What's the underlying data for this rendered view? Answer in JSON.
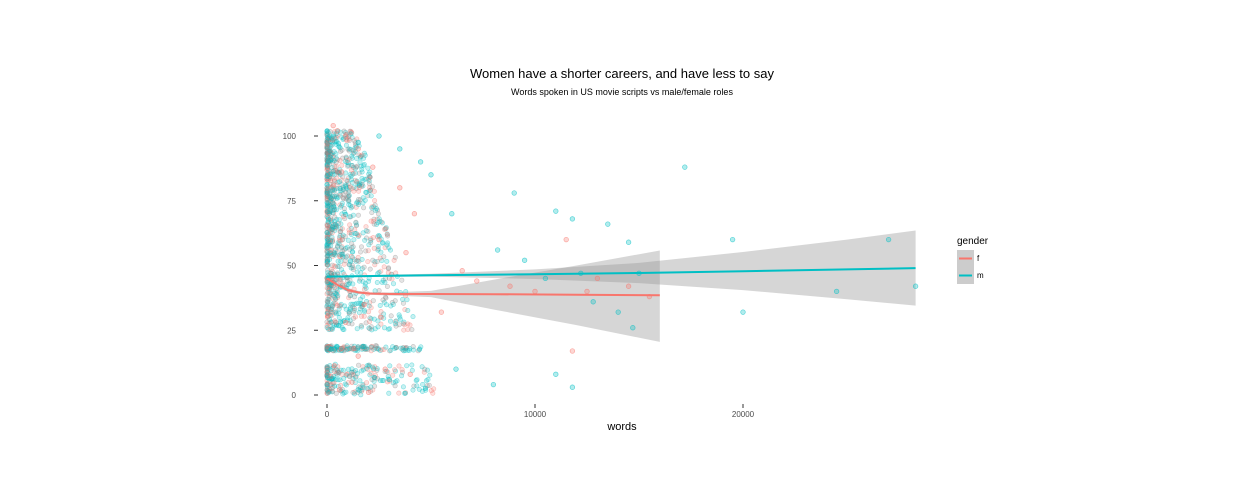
{
  "chart_data": {
    "type": "scatter",
    "title": "Women have a shorter careers, and have less to say",
    "subtitle": "Words spoken in US movie scripts vs male/female roles",
    "xlabel": "words",
    "ylabel": "",
    "xlim": [
      -1500,
      29000
    ],
    "ylim": [
      -5,
      105
    ],
    "x_ticks": [
      0,
      10000,
      20000
    ],
    "y_ticks": [
      0,
      25,
      50,
      75,
      100
    ],
    "grid": false,
    "legend": {
      "title": "gender",
      "position": "right",
      "entries": [
        {
          "label": "f",
          "color": "#F8766D"
        },
        {
          "label": "m",
          "color": "#00BFC4"
        }
      ]
    },
    "colors": {
      "f": "#F8766D",
      "m": "#00BFC4",
      "ribbon": "#999999"
    },
    "series": [
      {
        "name": "f",
        "color": "#F8766D",
        "points_sample": [
          [
            300,
            104
          ],
          [
            500,
            102
          ],
          [
            900,
            100
          ],
          [
            1500,
            95
          ],
          [
            2200,
            88
          ],
          [
            3500,
            80
          ],
          [
            4200,
            70
          ],
          [
            2500,
            60
          ],
          [
            3800,
            55
          ],
          [
            6500,
            48
          ],
          [
            7200,
            44
          ],
          [
            8800,
            42
          ],
          [
            10000,
            40
          ],
          [
            11500,
            60
          ],
          [
            11800,
            17
          ],
          [
            12500,
            40
          ],
          [
            13000,
            45
          ],
          [
            14500,
            42
          ],
          [
            15500,
            38
          ],
          [
            1800,
            35
          ],
          [
            2600,
            30
          ],
          [
            900,
            28
          ],
          [
            5500,
            32
          ],
          [
            700,
            18
          ],
          [
            1500,
            15
          ],
          [
            2800,
            10
          ],
          [
            4000,
            8
          ],
          [
            1200,
            5
          ],
          [
            600,
            2
          ],
          [
            2000,
            1
          ]
        ],
        "trend": {
          "x": [
            0,
            500,
            1000,
            1500,
            2000,
            3000,
            5000,
            8000,
            12000,
            16000
          ],
          "y": [
            45,
            42.5,
            40.5,
            39.6,
            39.2,
            39.0,
            39.0,
            38.9,
            38.7,
            38.5
          ],
          "ci_low": [
            43.5,
            41.5,
            39.8,
            39.0,
            38.7,
            38.4,
            37.8,
            33,
            27,
            20.5
          ],
          "ci_high": [
            46.5,
            43.5,
            41.2,
            40.2,
            39.7,
            39.6,
            40.2,
            44.5,
            50,
            55.8
          ]
        }
      },
      {
        "name": "m",
        "color": "#00BFC4",
        "points_sample": [
          [
            17200,
            88
          ],
          [
            9000,
            78
          ],
          [
            11000,
            71
          ],
          [
            11800,
            68
          ],
          [
            13500,
            66
          ],
          [
            14500,
            59
          ],
          [
            19500,
            60
          ],
          [
            27000,
            60
          ],
          [
            12200,
            47
          ],
          [
            15000,
            47
          ],
          [
            28300,
            42
          ],
          [
            24500,
            40
          ],
          [
            14000,
            32
          ],
          [
            20000,
            32
          ],
          [
            14700,
            26
          ],
          [
            10500,
            45
          ],
          [
            8200,
            56
          ],
          [
            9500,
            52
          ],
          [
            12800,
            36
          ],
          [
            6000,
            70
          ],
          [
            5000,
            85
          ],
          [
            4500,
            90
          ],
          [
            3500,
            95
          ],
          [
            2500,
            100
          ],
          [
            8000,
            4
          ],
          [
            11000,
            8
          ],
          [
            11800,
            3
          ],
          [
            6200,
            10
          ],
          [
            3000,
            6
          ],
          [
            1500,
            2
          ]
        ],
        "trend": {
          "x": [
            0,
            5000,
            10000,
            15000,
            20000,
            25000,
            28300
          ],
          "y": [
            45.7,
            46.2,
            46.6,
            47.1,
            47.8,
            48.5,
            49.0
          ],
          "ci_low": [
            45.5,
            45.7,
            44.8,
            43.2,
            40.5,
            37,
            34.5
          ],
          "ci_high": [
            46.0,
            46.8,
            48.5,
            51,
            55.2,
            60,
            63.5
          ]
        }
      }
    ]
  }
}
